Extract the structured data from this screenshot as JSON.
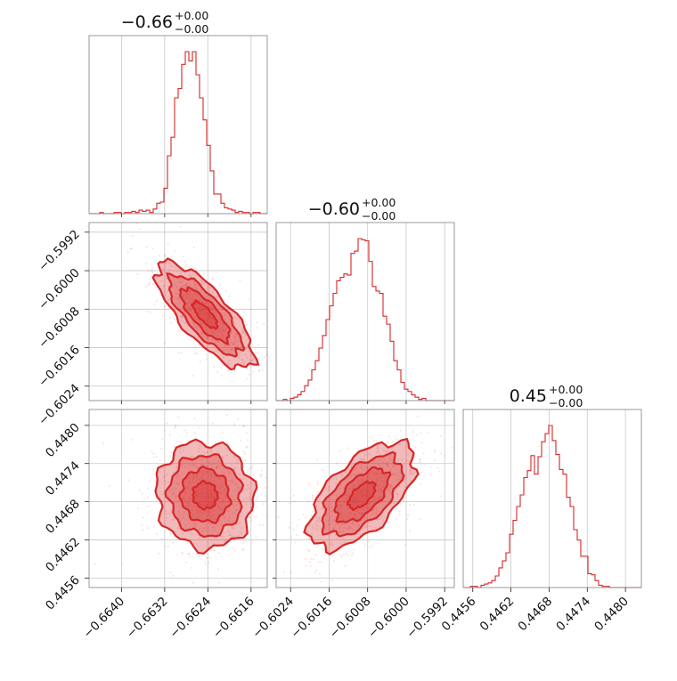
{
  "colors": {
    "series": "#d62728",
    "frame": "#7f7f7f",
    "grid": "#c8c8c8"
  },
  "chart_data": {
    "type": "corner",
    "grid": true,
    "parameters": [
      {
        "title_value": "−0.66",
        "title_plus": "+0.00",
        "title_minus": "−0.00",
        "range": [
          -0.6646,
          -0.6613
        ],
        "ticks": [
          -0.664,
          -0.6632,
          -0.6624,
          -0.6616
        ],
        "tick_labels": [
          "−0.6640",
          "−0.6632",
          "−0.6624",
          "−0.6616"
        ],
        "mean": -0.66245,
        "sd": 0.00045
      },
      {
        "title_value": "−0.60",
        "title_plus": "+0.00",
        "title_minus": "−0.00",
        "range": [
          -0.6027,
          -0.599
        ],
        "ticks": [
          -0.6024,
          -0.6016,
          -0.6008,
          -0.6,
          -0.5992
        ],
        "tick_labels": [
          "−0.6024",
          "−0.6016",
          "−0.6008",
          "−0.6000",
          "−0.5992"
        ],
        "mean": -0.60092,
        "sd": 0.00055
      },
      {
        "title_value": "0.45",
        "title_plus": "+0.00",
        "title_minus": "−0.00",
        "range": [
          0.44545,
          0.44825
        ],
        "ticks": [
          0.4456,
          0.4462,
          0.4468,
          0.4474,
          0.448
        ],
        "tick_labels": [
          "0.4456",
          "0.4462",
          "0.4468",
          "0.4474",
          "0.4480"
        ],
        "mean": 0.4469,
        "sd": 0.00042
      }
    ],
    "hist_1d": [
      {
        "bins": [
          -0.6646,
          -0.6613
        ],
        "counts": [
          0,
          0,
          0,
          1,
          0,
          0,
          0,
          1,
          1,
          0,
          1,
          1,
          2,
          1,
          3,
          2,
          3,
          1,
          4,
          9,
          10,
          22,
          50,
          66,
          100,
          108,
          129,
          140,
          132,
          140,
          120,
          100,
          81,
          59,
          37,
          17,
          17,
          9,
          5,
          4,
          3,
          1,
          2,
          1,
          1,
          0,
          1,
          1,
          0,
          0
        ]
      },
      {
        "bins": [
          -0.6027,
          -0.599
        ],
        "counts": [
          0,
          0,
          1,
          0,
          2,
          3,
          5,
          8,
          13,
          18,
          27,
          35,
          46,
          57,
          71,
          83,
          94,
          105,
          108,
          111,
          110,
          129,
          131,
          142,
          141,
          140,
          122,
          100,
          96,
          94,
          74,
          67,
          52,
          35,
          27,
          16,
          10,
          8,
          5,
          3,
          1,
          2,
          0,
          0,
          0,
          0,
          0,
          0,
          0,
          0
        ]
      },
      {
        "bins": [
          0.44545,
          0.44825
        ],
        "counts": [
          0,
          0,
          1,
          1,
          0,
          2,
          3,
          4,
          6,
          10,
          17,
          23,
          30,
          46,
          58,
          70,
          80,
          95,
          101,
          114,
          98,
          113,
          126,
          133,
          140,
          127,
          115,
          102,
          98,
          78,
          70,
          50,
          41,
          27,
          27,
          12,
          11,
          6,
          2,
          1,
          1,
          0,
          0,
          0,
          0,
          0,
          0,
          0,
          0,
          0
        ]
      }
    ],
    "pairs": [
      {
        "x_param": 0,
        "y_param": 1,
        "correlation": -0.77
      },
      {
        "x_param": 0,
        "y_param": 2,
        "correlation": -0.05
      },
      {
        "x_param": 1,
        "y_param": 2,
        "correlation": 0.6
      }
    ],
    "contour_levels": [
      0.118,
      0.393,
      0.675,
      0.865
    ]
  }
}
